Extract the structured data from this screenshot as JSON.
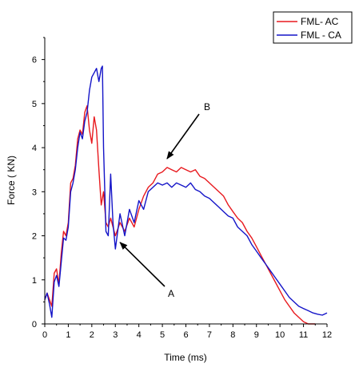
{
  "chart_data": {
    "type": "line",
    "xlabel": "Time (ms)",
    "ylabel": "Force ( KN)",
    "xlim": [
      0,
      12
    ],
    "ylim": [
      0,
      6.5
    ],
    "x_ticks": [
      "0",
      "1",
      "2",
      "3",
      "4",
      "5",
      "6",
      "7",
      "8",
      "9",
      "10",
      "11",
      "12"
    ],
    "y_ticks": [
      "0",
      "1",
      "2",
      "3",
      "4",
      "5",
      "6"
    ],
    "grid": false,
    "legend_position": "top-right",
    "series": [
      {
        "name": "FML- AC",
        "color": "#e8191e",
        "points": [
          [
            0.0,
            0.55
          ],
          [
            0.1,
            0.7
          ],
          [
            0.2,
            0.55
          ],
          [
            0.3,
            0.4
          ],
          [
            0.4,
            1.15
          ],
          [
            0.5,
            1.25
          ],
          [
            0.6,
            0.9
          ],
          [
            0.7,
            1.6
          ],
          [
            0.8,
            2.1
          ],
          [
            0.9,
            2.0
          ],
          [
            1.0,
            2.3
          ],
          [
            1.1,
            3.2
          ],
          [
            1.2,
            3.3
          ],
          [
            1.3,
            3.6
          ],
          [
            1.4,
            4.2
          ],
          [
            1.5,
            4.4
          ],
          [
            1.6,
            4.3
          ],
          [
            1.7,
            4.8
          ],
          [
            1.8,
            4.95
          ],
          [
            1.9,
            4.4
          ],
          [
            2.0,
            4.1
          ],
          [
            2.1,
            4.7
          ],
          [
            2.2,
            4.4
          ],
          [
            2.3,
            3.5
          ],
          [
            2.4,
            2.7
          ],
          [
            2.5,
            3.0
          ],
          [
            2.6,
            2.3
          ],
          [
            2.7,
            2.2
          ],
          [
            2.8,
            2.4
          ],
          [
            2.9,
            2.2
          ],
          [
            3.0,
            2.0
          ],
          [
            3.2,
            2.3
          ],
          [
            3.4,
            2.1
          ],
          [
            3.6,
            2.4
          ],
          [
            3.8,
            2.2
          ],
          [
            4.0,
            2.6
          ],
          [
            4.2,
            2.9
          ],
          [
            4.4,
            3.1
          ],
          [
            4.6,
            3.2
          ],
          [
            4.8,
            3.4
          ],
          [
            5.0,
            3.45
          ],
          [
            5.2,
            3.55
          ],
          [
            5.4,
            3.5
          ],
          [
            5.6,
            3.45
          ],
          [
            5.8,
            3.55
          ],
          [
            6.0,
            3.5
          ],
          [
            6.2,
            3.45
          ],
          [
            6.4,
            3.5
          ],
          [
            6.6,
            3.35
          ],
          [
            6.8,
            3.3
          ],
          [
            7.0,
            3.2
          ],
          [
            7.2,
            3.1
          ],
          [
            7.4,
            3.0
          ],
          [
            7.6,
            2.9
          ],
          [
            7.8,
            2.7
          ],
          [
            8.0,
            2.55
          ],
          [
            8.2,
            2.4
          ],
          [
            8.4,
            2.3
          ],
          [
            8.6,
            2.1
          ],
          [
            8.8,
            1.95
          ],
          [
            9.0,
            1.75
          ],
          [
            9.2,
            1.55
          ],
          [
            9.4,
            1.35
          ],
          [
            9.6,
            1.15
          ],
          [
            9.8,
            0.95
          ],
          [
            10.0,
            0.75
          ],
          [
            10.2,
            0.55
          ],
          [
            10.4,
            0.4
          ],
          [
            10.6,
            0.25
          ],
          [
            10.8,
            0.15
          ],
          [
            11.0,
            0.05
          ],
          [
            11.2,
            0.0
          ],
          [
            11.5,
            0.0
          ]
        ]
      },
      {
        "name": "FML - CA",
        "color": "#1414c8",
        "points": [
          [
            0.0,
            0.55
          ],
          [
            0.1,
            0.7
          ],
          [
            0.2,
            0.45
          ],
          [
            0.3,
            0.15
          ],
          [
            0.4,
            0.95
          ],
          [
            0.5,
            1.1
          ],
          [
            0.6,
            0.85
          ],
          [
            0.7,
            1.4
          ],
          [
            0.8,
            1.95
          ],
          [
            0.9,
            1.9
          ],
          [
            1.0,
            2.2
          ],
          [
            1.1,
            3.0
          ],
          [
            1.2,
            3.2
          ],
          [
            1.3,
            3.5
          ],
          [
            1.4,
            4.0
          ],
          [
            1.5,
            4.35
          ],
          [
            1.6,
            4.2
          ],
          [
            1.7,
            4.6
          ],
          [
            1.8,
            4.8
          ],
          [
            1.9,
            5.3
          ],
          [
            2.0,
            5.6
          ],
          [
            2.1,
            5.7
          ],
          [
            2.2,
            5.8
          ],
          [
            2.3,
            5.5
          ],
          [
            2.4,
            5.8
          ],
          [
            2.45,
            5.85
          ],
          [
            2.5,
            4.0
          ],
          [
            2.6,
            2.1
          ],
          [
            2.7,
            2.0
          ],
          [
            2.8,
            3.4
          ],
          [
            2.9,
            2.3
          ],
          [
            3.0,
            1.7
          ],
          [
            3.2,
            2.5
          ],
          [
            3.4,
            2.0
          ],
          [
            3.6,
            2.6
          ],
          [
            3.8,
            2.3
          ],
          [
            4.0,
            2.8
          ],
          [
            4.2,
            2.6
          ],
          [
            4.4,
            3.0
          ],
          [
            4.6,
            3.1
          ],
          [
            4.8,
            3.2
          ],
          [
            5.0,
            3.15
          ],
          [
            5.2,
            3.2
          ],
          [
            5.4,
            3.1
          ],
          [
            5.6,
            3.2
          ],
          [
            5.8,
            3.15
          ],
          [
            6.0,
            3.1
          ],
          [
            6.2,
            3.2
          ],
          [
            6.4,
            3.05
          ],
          [
            6.6,
            3.0
          ],
          [
            6.8,
            2.9
          ],
          [
            7.0,
            2.85
          ],
          [
            7.2,
            2.75
          ],
          [
            7.4,
            2.65
          ],
          [
            7.6,
            2.55
          ],
          [
            7.8,
            2.45
          ],
          [
            8.0,
            2.4
          ],
          [
            8.2,
            2.2
          ],
          [
            8.4,
            2.1
          ],
          [
            8.6,
            2.0
          ],
          [
            8.8,
            1.8
          ],
          [
            9.0,
            1.65
          ],
          [
            9.2,
            1.5
          ],
          [
            9.4,
            1.35
          ],
          [
            9.6,
            1.2
          ],
          [
            9.8,
            1.05
          ],
          [
            10.0,
            0.9
          ],
          [
            10.2,
            0.75
          ],
          [
            10.4,
            0.6
          ],
          [
            10.6,
            0.5
          ],
          [
            10.8,
            0.4
          ],
          [
            11.0,
            0.35
          ],
          [
            11.2,
            0.3
          ],
          [
            11.4,
            0.25
          ],
          [
            11.6,
            0.22
          ],
          [
            11.8,
            0.2
          ],
          [
            12.0,
            0.25
          ]
        ]
      }
    ],
    "annotations": [
      {
        "label": "A",
        "point_at": [
          3.2,
          1.85
        ]
      },
      {
        "label": "B",
        "point_at": [
          5.2,
          3.75
        ]
      }
    ]
  }
}
